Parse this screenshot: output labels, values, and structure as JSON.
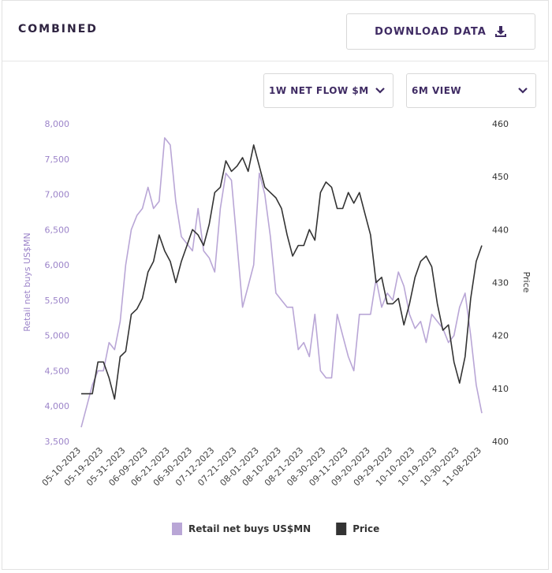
{
  "header": {
    "title": "COMBINED",
    "download": "DOWNLOAD DATA"
  },
  "controls": {
    "metric": "1W NET FLOW $M",
    "view": "6M VIEW"
  },
  "chart_data": {
    "type": "line",
    "ylabel": "Retail net buys US$MN",
    "y2label": "Price",
    "categories": [
      "05-10-2023",
      null,
      null,
      null,
      "05-19-2023",
      null,
      null,
      null,
      "05-31-2023",
      null,
      null,
      null,
      "06-09-2023",
      null,
      null,
      null,
      "06-21-2023",
      null,
      null,
      null,
      "06-30-2023",
      null,
      null,
      null,
      "07-12-2023",
      null,
      null,
      null,
      "07-21-2023",
      null,
      null,
      null,
      "08-01-2023",
      null,
      null,
      null,
      "08-10-2023",
      null,
      null,
      null,
      "08-21-2023",
      null,
      null,
      null,
      "08-30-2023",
      null,
      null,
      null,
      "09-11-2023",
      null,
      null,
      null,
      "09-20-2023",
      null,
      null,
      null,
      "09-29-2023",
      null,
      null,
      null,
      "10-10-2023",
      null,
      null,
      null,
      "10-19-2023",
      null,
      null,
      null,
      "10-30-2023",
      null,
      null,
      null,
      "11-08-2023"
    ],
    "series": [
      {
        "name": "Retail net buys US$MN",
        "color": "#b9a6d6",
        "axis": "y",
        "values": [
          3700,
          4000,
          4300,
          4500,
          4500,
          4900,
          4800,
          5200,
          6000,
          6500,
          6700,
          6800,
          7100,
          6800,
          6900,
          7800,
          7700,
          6900,
          6400,
          6300,
          6200,
          6800,
          6200,
          6100,
          5900,
          6800,
          7300,
          7200,
          6300,
          5400,
          5700,
          6000,
          7300,
          7000,
          6400,
          5600,
          5500,
          5400,
          5400,
          4800,
          4900,
          4700,
          5300,
          4500,
          4400,
          4400,
          5300,
          5000,
          4700,
          4500,
          5300,
          5300,
          5300,
          5800,
          5400,
          5600,
          5500,
          5900,
          5700,
          5300,
          5100,
          5200,
          4900,
          5300,
          5200,
          5100,
          4900,
          5000,
          5400,
          5600,
          5000,
          4300,
          3900
        ]
      },
      {
        "name": "Price",
        "color": "#333333",
        "axis": "y2",
        "values": [
          409,
          409,
          409,
          415,
          415,
          412,
          408,
          416,
          417,
          424,
          425,
          427,
          432,
          434,
          439,
          436,
          434,
          430,
          434,
          437,
          440,
          439,
          437,
          441,
          447,
          448,
          453,
          451,
          452,
          453.6,
          451,
          456,
          452,
          448,
          447,
          446,
          444,
          439,
          435,
          437,
          437,
          440,
          438,
          447,
          449,
          448,
          444,
          444,
          447,
          445,
          447,
          443,
          439,
          430,
          431,
          426,
          426,
          427,
          422,
          426,
          431,
          434,
          435,
          433,
          426,
          421,
          422,
          415,
          411,
          416,
          427,
          434,
          437
        ]
      }
    ],
    "ylim": [
      3500,
      8000
    ],
    "yticks": [
      {
        "value": 3500,
        "label": "3,500"
      },
      {
        "value": 4000,
        "label": "4,000"
      },
      {
        "value": 4500,
        "label": "4,500"
      },
      {
        "value": 5000,
        "label": "5,000"
      },
      {
        "value": 5500,
        "label": "5,500"
      },
      {
        "value": 6000,
        "label": "6,000"
      },
      {
        "value": 6500,
        "label": "6,500"
      },
      {
        "value": 7000,
        "label": "7,000"
      },
      {
        "value": 7500,
        "label": "7,500"
      },
      {
        "value": 8000,
        "label": "8,000"
      }
    ],
    "y2lim": [
      400,
      460
    ],
    "y2ticks": [
      400,
      410,
      420,
      430,
      440,
      450,
      460
    ],
    "ytick_color": "#9c84c9",
    "grid": false
  }
}
